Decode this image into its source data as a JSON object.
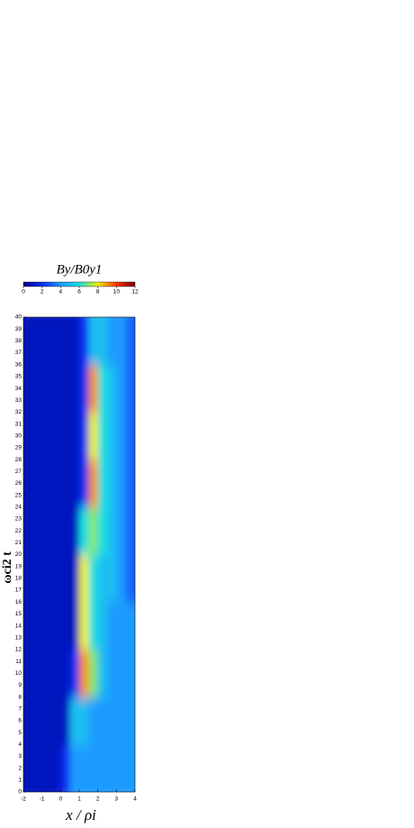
{
  "chart_data": {
    "type": "heatmap",
    "colorbar_label": "By/B0y1",
    "xlabel": "x / ρi",
    "ylabel": "ωci2 t",
    "xbins": [
      -2,
      -1.5,
      -1,
      -0.5,
      0,
      0.5,
      1,
      1.5,
      2,
      2.5,
      3,
      3.5,
      4
    ],
    "ybins": [
      0,
      4,
      8,
      12,
      16,
      20,
      24,
      28,
      32,
      36,
      40
    ],
    "z": [
      [
        1,
        1,
        1,
        1,
        2,
        4,
        4,
        4,
        4,
        4,
        4,
        4
      ],
      [
        1,
        1,
        1,
        1,
        1,
        5,
        5,
        4,
        4,
        4,
        4,
        4
      ],
      [
        1,
        1,
        1,
        1,
        1,
        2,
        9,
        7,
        5,
        4,
        4,
        4
      ],
      [
        1,
        1,
        1,
        1,
        1,
        1,
        8,
        6,
        5,
        4,
        4,
        4
      ],
      [
        1,
        1,
        1,
        1,
        1,
        1,
        8,
        6,
        5,
        5,
        4,
        3
      ],
      [
        1,
        1,
        1,
        1,
        1,
        1,
        6,
        7,
        6,
        5,
        4,
        3
      ],
      [
        1,
        1,
        1,
        1,
        1,
        1,
        2,
        9,
        6,
        5,
        4,
        3
      ],
      [
        1,
        1,
        1,
        1,
        1,
        1,
        2,
        8,
        6,
        5,
        4,
        3
      ],
      [
        1,
        1,
        1,
        1,
        1,
        1,
        2,
        9,
        6,
        5,
        4,
        3
      ],
      [
        1,
        1,
        1,
        1,
        1,
        1,
        2,
        5,
        5,
        4,
        4,
        3
      ]
    ],
    "colormap": [
      "#00008b",
      "#0a2cf0",
      "#1e9bff",
      "#18e0e0",
      "#f0f000",
      "#ff3000",
      "#7a0000"
    ],
    "clim": [
      0,
      12
    ],
    "cticks": [
      0,
      2,
      4,
      6,
      8,
      10,
      12
    ],
    "xlim": [
      -2,
      4
    ],
    "xticks": [
      -2,
      -1,
      0,
      1,
      2,
      3,
      4
    ],
    "ylim": [
      0,
      40
    ],
    "yticks": [
      0,
      1,
      2,
      3,
      4,
      5,
      6,
      7,
      8,
      9,
      10,
      11,
      12,
      13,
      14,
      15,
      16,
      17,
      18,
      19,
      20,
      21,
      22,
      23,
      24,
      25,
      26,
      27,
      28,
      29,
      30,
      31,
      32,
      33,
      34,
      35,
      36,
      37,
      38,
      39,
      40
    ]
  }
}
